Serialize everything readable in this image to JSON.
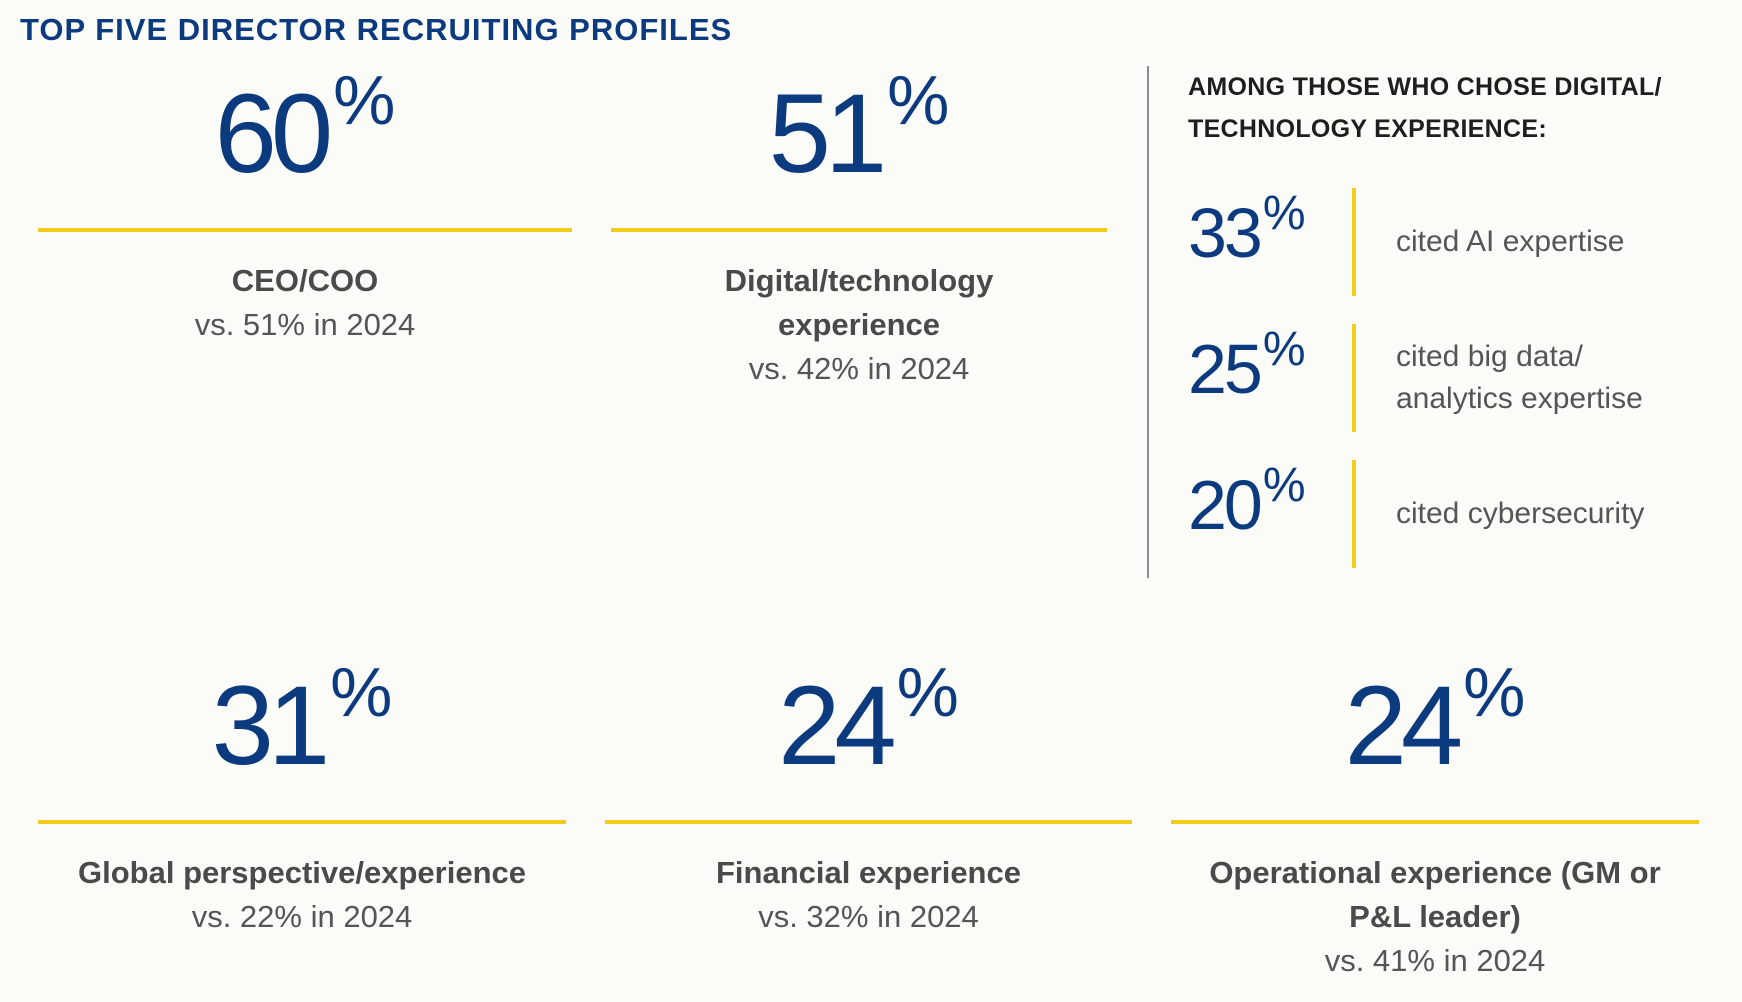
{
  "title": "TOP FIVE DIRECTOR RECRUITING PROFILES",
  "chart_data": {
    "type": "table",
    "title": "TOP FIVE DIRECTOR RECRUITING PROFILES",
    "profiles": [
      {
        "value": "60",
        "unit": "%",
        "label": "CEO/COO",
        "compare": "vs. 51% in 2024"
      },
      {
        "value": "51",
        "unit": "%",
        "label": "Digital/technology experience",
        "compare": "vs. 42% in 2024"
      },
      {
        "value": "31",
        "unit": "%",
        "label": "Global perspective/experience",
        "compare": "vs. 22% in 2024"
      },
      {
        "value": "24",
        "unit": "%",
        "label": "Financial experience",
        "compare": "vs. 32% in 2024"
      },
      {
        "value": "24",
        "unit": "%",
        "label": "Operational experience (GM or P&L leader)",
        "compare": "vs. 41% in 2024"
      }
    ],
    "digital_breakdown": {
      "heading": "AMONG THOSE WHO CHOSE DIGITAL/ TECHNOLOGY EXPERIENCE:",
      "items": [
        {
          "value": "33",
          "unit": "%",
          "text": "cited AI expertise"
        },
        {
          "value": "25",
          "unit": "%",
          "text": "cited big data/ analytics expertise"
        },
        {
          "value": "20",
          "unit": "%",
          "text": "cited cybersecurity"
        }
      ]
    }
  },
  "colors": {
    "navy": "#0b3a7e",
    "yellow": "#f2cb1d",
    "gray_text": "#555555"
  }
}
